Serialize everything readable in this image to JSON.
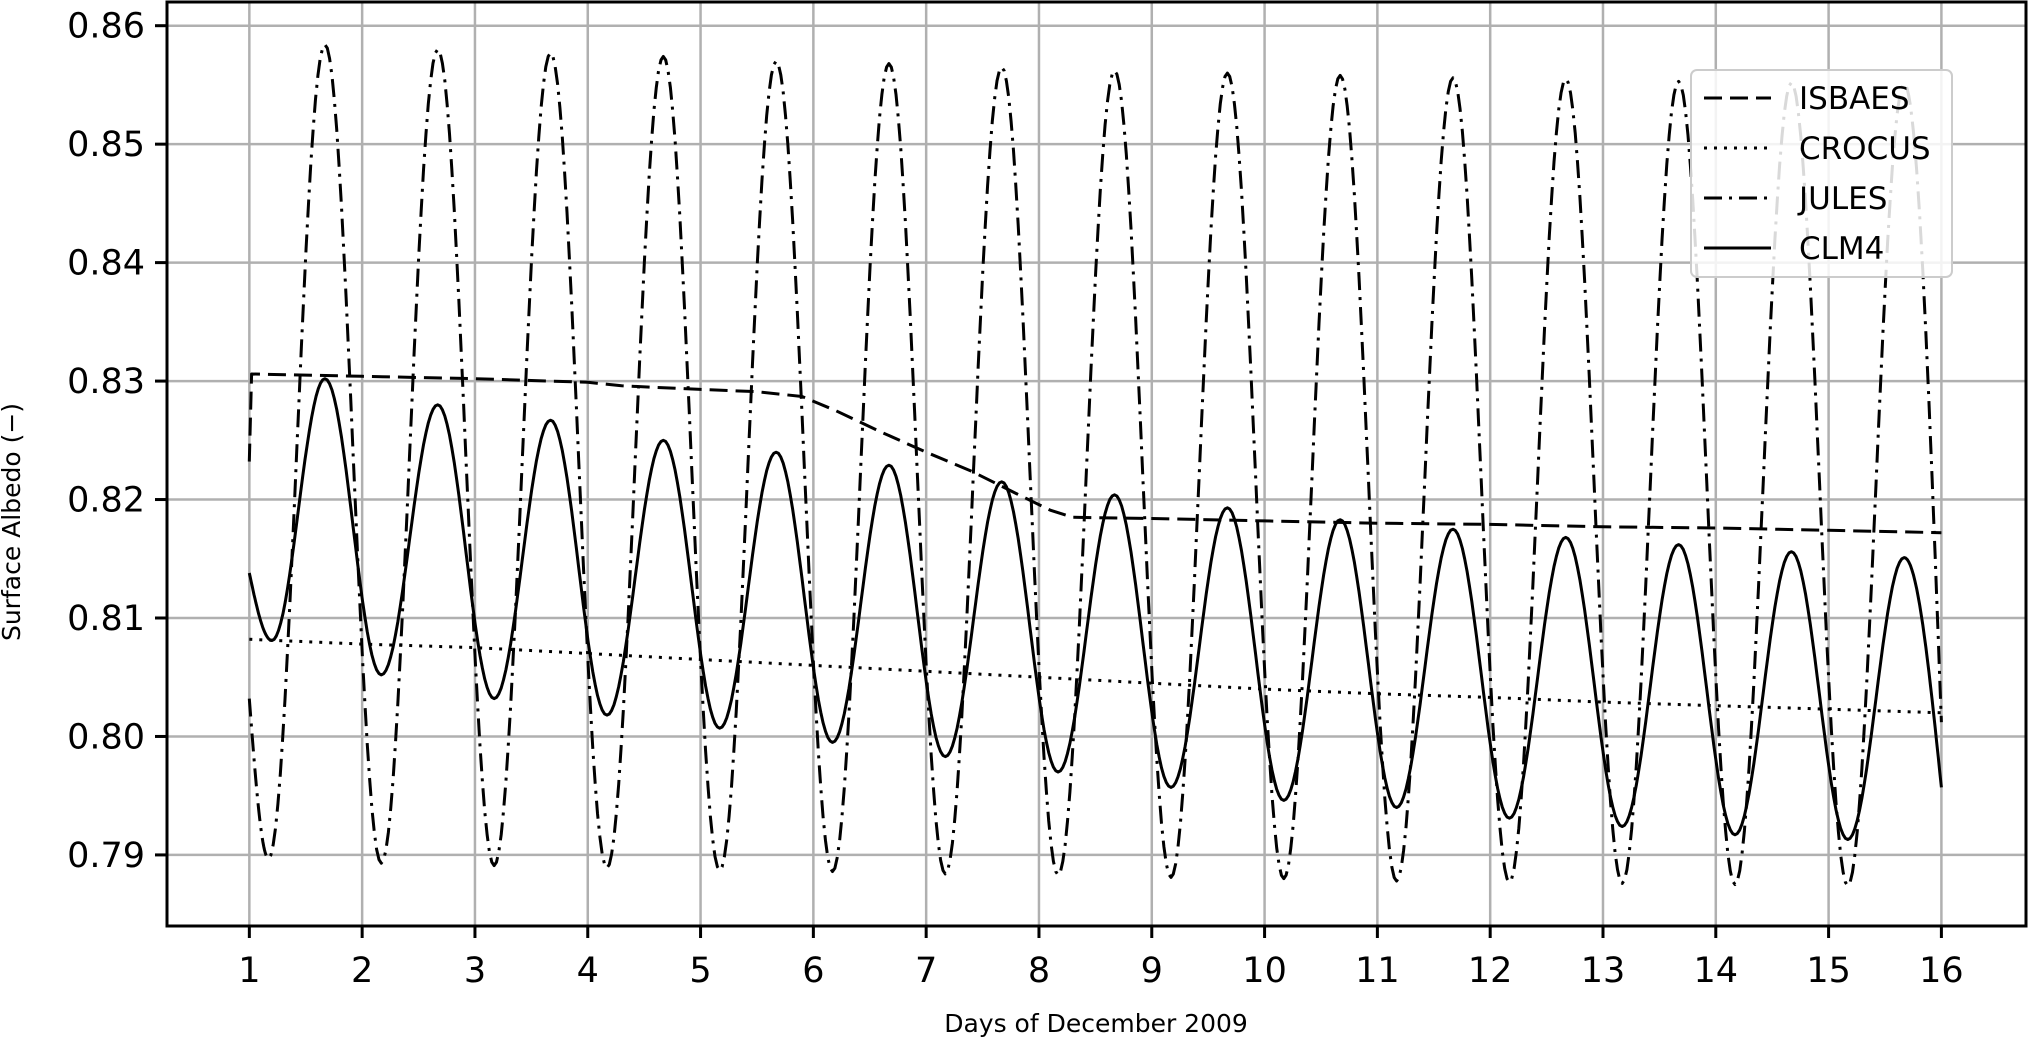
{
  "chart_data": {
    "type": "line",
    "xlabel": "Days of December 2009",
    "ylabel": "Surface Albedo (−)",
    "xlim": [
      0.27,
      16.75
    ],
    "ylim": [
      0.784,
      0.862
    ],
    "xticks": [
      1,
      2,
      3,
      4,
      5,
      6,
      7,
      8,
      9,
      10,
      11,
      12,
      13,
      14,
      15,
      16
    ],
    "yticks": [
      0.79,
      0.8,
      0.81,
      0.82,
      0.83,
      0.84,
      0.85,
      0.86
    ],
    "ytick_labels": [
      "0.79",
      "0.80",
      "0.81",
      "0.82",
      "0.83",
      "0.84",
      "0.85",
      "0.86"
    ],
    "grid": true,
    "legend_position": "top-right",
    "series": [
      {
        "name": "ISBAES",
        "style": "dashed",
        "x": [
          1.0,
          1.02,
          2,
          3,
          4,
          4.3,
          5,
          5.5,
          5.9,
          6.2,
          6.6,
          7,
          7.4,
          7.8,
          8.1,
          8.3,
          9,
          10,
          11,
          12,
          13,
          14,
          15,
          16
        ],
        "values": [
          0.8232,
          0.8306,
          0.8304,
          0.8302,
          0.8299,
          0.8296,
          0.8293,
          0.8291,
          0.8287,
          0.8275,
          0.8257,
          0.824,
          0.8224,
          0.8205,
          0.8191,
          0.8185,
          0.8184,
          0.8182,
          0.818,
          0.8179,
          0.8177,
          0.8176,
          0.8174,
          0.8172
        ]
      },
      {
        "name": "CROCUS",
        "style": "dotted",
        "x": [
          1,
          2,
          3,
          4,
          5,
          6,
          7,
          8,
          9,
          10,
          11,
          12,
          13,
          14,
          15,
          16
        ],
        "values": [
          0.8082,
          0.8078,
          0.8075,
          0.807,
          0.8065,
          0.806,
          0.8055,
          0.805,
          0.8045,
          0.804,
          0.8036,
          0.8033,
          0.8029,
          0.8026,
          0.8023,
          0.802
        ]
      },
      {
        "name": "JULES",
        "style": "dashdot",
        "start_value": 0.8032,
        "end_value": 0.8012,
        "peaks": [
          [
            1.67,
            0.8584
          ],
          [
            2.67,
            0.858
          ],
          [
            3.67,
            0.8577
          ],
          [
            4.67,
            0.8574
          ],
          [
            5.67,
            0.857
          ],
          [
            6.67,
            0.8568
          ],
          [
            7.67,
            0.8565
          ],
          [
            8.67,
            0.8562
          ],
          [
            9.67,
            0.856
          ],
          [
            10.67,
            0.8558
          ],
          [
            11.67,
            0.8556
          ],
          [
            12.67,
            0.8555
          ],
          [
            13.67,
            0.8553
          ],
          [
            14.67,
            0.8552
          ],
          [
            15.67,
            0.8551
          ]
        ],
        "troughs": [
          [
            1.17,
            0.7897
          ],
          [
            2.17,
            0.7893
          ],
          [
            3.17,
            0.7891
          ],
          [
            4.17,
            0.7889
          ],
          [
            5.17,
            0.7887
          ],
          [
            6.17,
            0.7886
          ],
          [
            7.17,
            0.7884
          ],
          [
            8.17,
            0.7883
          ],
          [
            9.17,
            0.7881
          ],
          [
            10.17,
            0.788
          ],
          [
            11.17,
            0.7878
          ],
          [
            12.17,
            0.7877
          ],
          [
            13.17,
            0.7876
          ],
          [
            14.17,
            0.7875
          ],
          [
            15.17,
            0.7874
          ]
        ]
      },
      {
        "name": "CLM4",
        "style": "solid",
        "start_value": 0.8138,
        "end_value": 0.7957,
        "peaks": [
          [
            1.67,
            0.8302
          ],
          [
            2.67,
            0.828
          ],
          [
            3.67,
            0.8267
          ],
          [
            4.67,
            0.825
          ],
          [
            5.67,
            0.824
          ],
          [
            6.67,
            0.8229
          ],
          [
            7.67,
            0.8215
          ],
          [
            8.67,
            0.8204
          ],
          [
            9.67,
            0.8193
          ],
          [
            10.67,
            0.8183
          ],
          [
            11.67,
            0.8175
          ],
          [
            12.67,
            0.8168
          ],
          [
            13.67,
            0.8162
          ],
          [
            14.67,
            0.8156
          ],
          [
            15.67,
            0.8151
          ]
        ],
        "troughs": [
          [
            1.2,
            0.8081
          ],
          [
            2.17,
            0.8052
          ],
          [
            3.17,
            0.8032
          ],
          [
            4.17,
            0.8018
          ],
          [
            5.17,
            0.8007
          ],
          [
            6.17,
            0.7995
          ],
          [
            7.17,
            0.7983
          ],
          [
            8.17,
            0.797
          ],
          [
            9.17,
            0.7957
          ],
          [
            10.17,
            0.7946
          ],
          [
            11.17,
            0.794
          ],
          [
            12.17,
            0.7931
          ],
          [
            13.17,
            0.7924
          ],
          [
            14.17,
            0.7917
          ],
          [
            15.17,
            0.7913
          ]
        ]
      }
    ]
  }
}
